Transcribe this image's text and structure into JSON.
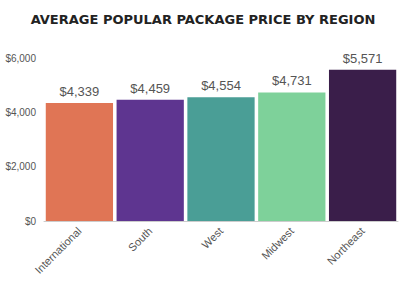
{
  "chart_data": {
    "type": "bar",
    "title": "AVERAGE POPULAR PACKAGE PRICE BY REGION",
    "categories": [
      "International",
      "South",
      "West",
      "Midwest",
      "Northeast"
    ],
    "values": [
      4339,
      4459,
      4554,
      4731,
      5571
    ],
    "value_labels": [
      "$4,339",
      "$4,459",
      "$4,554",
      "$4,731",
      "$5,571"
    ],
    "colors": [
      "#e07555",
      "#5e3590",
      "#4a9e96",
      "#7ed19a",
      "#3a1e4a"
    ],
    "ylim": [
      0,
      6000
    ],
    "yticks": [
      {
        "value": 0,
        "label": "$0"
      },
      {
        "value": 2000,
        "label": "$2,000"
      },
      {
        "value": 4000,
        "label": "$4,000"
      },
      {
        "value": 6000,
        "label": "$6,000"
      }
    ],
    "grid": false,
    "data_labels": true
  }
}
